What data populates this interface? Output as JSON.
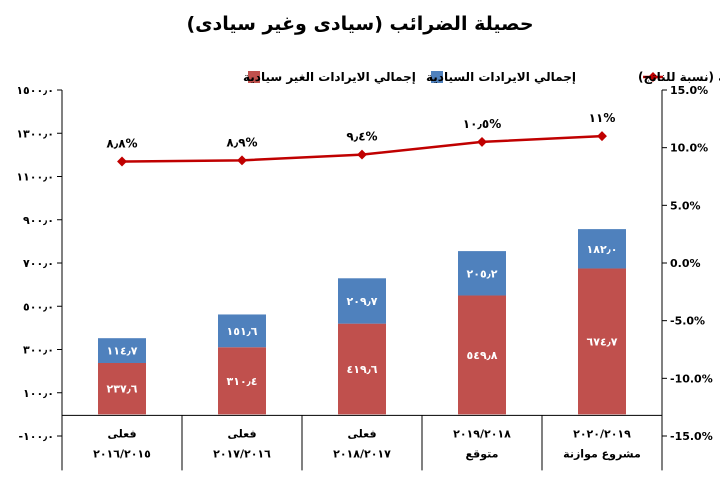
{
  "chart_data": {
    "type": "bar",
    "title": "حصيلة الضرائب (سيادى وغير سيادى)",
    "categories": [
      {
        "line1": "فعلى",
        "line2": "٢٠١٦/٢٠١٥"
      },
      {
        "line1": "فعلى",
        "line2": "٢٠١٧/٢٠١٦"
      },
      {
        "line1": "فعلى",
        "line2": "٢٠١٨/٢٠١٧"
      },
      {
        "line1": "٢٠١٩/٢٠١٨",
        "line2": "متوقع"
      },
      {
        "line1": "٢٠٢٠/٢٠١٩",
        "line2": "مشروع موازنة"
      }
    ],
    "series": [
      {
        "name": "إجمالي الايرادات الغير سيادية",
        "kind": "stacked-bar",
        "axis": "left",
        "color": "#c0504d",
        "values": [
          237.6,
          310.4,
          419.6,
          549.8,
          674.7
        ],
        "labels": [
          "٢٣٧٫٦",
          "٣١٠٫٤",
          "٤١٩٫٦",
          "٥٤٩٫٨",
          "٦٧٤٫٧"
        ]
      },
      {
        "name": "إجمالي الايرادات السيادية",
        "kind": "stacked-bar",
        "axis": "left",
        "color": "#4f81bd",
        "values": [
          114.7,
          151.6,
          209.7,
          205.2,
          182.0
        ],
        "labels": [
          "١١٤٫٧",
          "١٥١٫٦",
          "٢٠٩٫٧",
          "٢٠٥٫٢",
          "١٨٢٫٠"
        ]
      },
      {
        "name": "الايرادات الغير سيادية (نسبة للناتج)",
        "kind": "line",
        "axis": "right",
        "color": "#c00000",
        "values": [
          8.8,
          8.9,
          9.4,
          10.5,
          11.0
        ],
        "labels": [
          "٨٫٨%",
          "٨٫٩%",
          "٩٫٤%",
          "١٠٫٥%",
          "١١%"
        ]
      }
    ],
    "left_axis": {
      "ylim": [
        -100,
        1500
      ],
      "ticks": [
        -100,
        100,
        300,
        500,
        700,
        900,
        1100,
        1300,
        1500
      ],
      "tick_labels": [
        "-١٠٠٫٠",
        "١٠٠٫٠",
        "٣٠٠٫٠",
        "٥٠٠٫٠",
        "٧٠٠٫٠",
        "٩٠٠٫٠",
        "١١٠٠٫٠",
        "١٣٠٠٫٠",
        "١٥٠٠٫٠"
      ]
    },
    "right_axis": {
      "ylim": [
        -15,
        15
      ],
      "ticks": [
        -15,
        -10,
        -5,
        0,
        5,
        10,
        15
      ],
      "tick_labels": [
        "-15.0%",
        "-10.0%",
        "-5.0%",
        "0.0%",
        "5.0%",
        "10.0%",
        "15.0%"
      ]
    },
    "grid": false,
    "legend_position": "top"
  }
}
